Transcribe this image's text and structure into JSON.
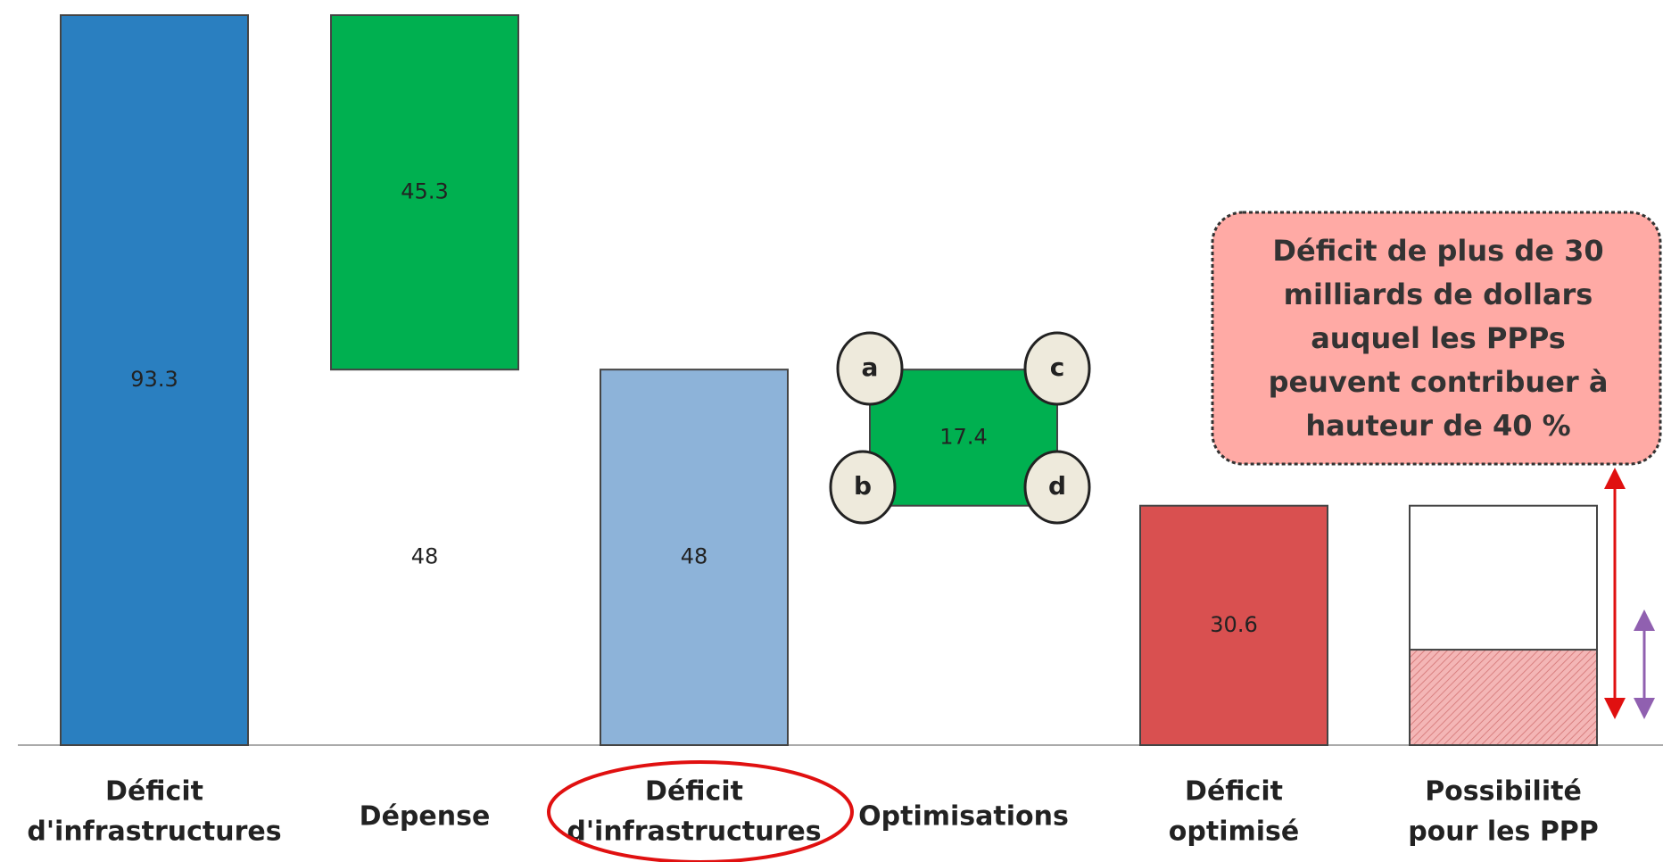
{
  "chart_data": {
    "type": "waterfall",
    "bars": [
      {
        "category": [
          "Déficit",
          "d'infrastructures"
        ],
        "segments": [
          {
            "value": 93.3,
            "color": "#2a7fc0",
            "labeled": true
          }
        ]
      },
      {
        "category": [
          "Dépense"
        ],
        "segments": [
          {
            "value": 48,
            "color": "none",
            "labeled": true
          },
          {
            "value": 45.3,
            "color": "#00b050",
            "labeled": true
          }
        ]
      },
      {
        "category": [
          "Déficit",
          "d'infrastructures"
        ],
        "segments": [
          {
            "value": 48,
            "color": "#8db3d9",
            "labeled": true
          }
        ],
        "circled": true
      },
      {
        "category": [
          "Optimisations"
        ],
        "segments": [
          {
            "value": 30.6,
            "color": "none",
            "labeled": false
          },
          {
            "value": 17.4,
            "color": "#00b050",
            "labeled": true
          }
        ]
      },
      {
        "category": [
          "Déficit",
          "optimisé"
        ],
        "segments": [
          {
            "value": 30.6,
            "color": "#d95050",
            "labeled": true
          }
        ]
      },
      {
        "category": [
          "Possibilité",
          "pour les PPP"
        ],
        "segments": [
          {
            "value": 12.2,
            "color": "hatch",
            "labeled": false
          },
          {
            "value": 18.4,
            "color": "#ffffff",
            "labeled": false
          }
        ]
      }
    ],
    "ylim": [
      0,
      93.3
    ],
    "markers": [
      "a",
      "b",
      "c",
      "d"
    ],
    "annotation": [
      "Déficit de plus de 30",
      "milliards de dollars",
      "auquel les PPPs",
      "peuvent contribuer à",
      "hauteur de 40 %"
    ]
  }
}
